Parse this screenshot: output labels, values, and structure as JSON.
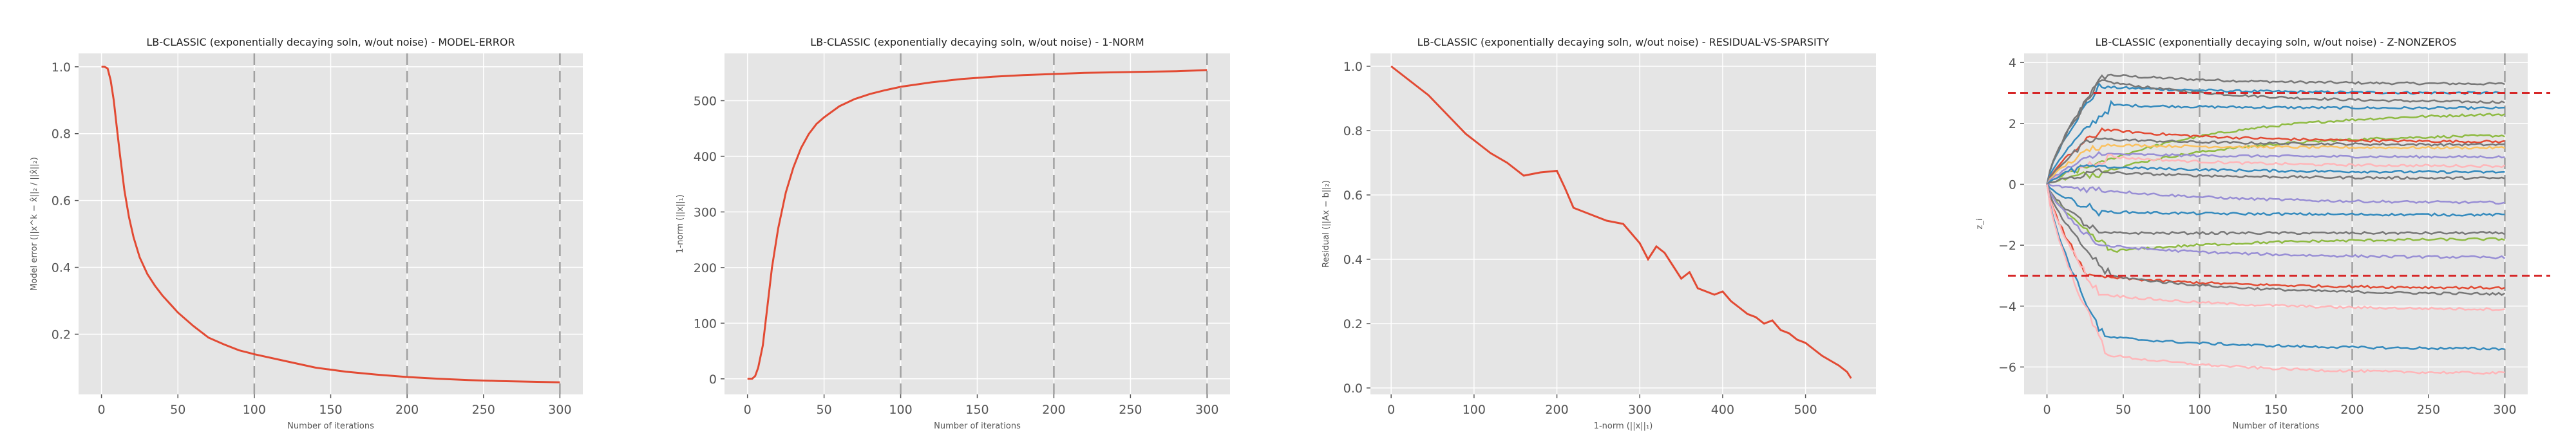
{
  "chart_data": [
    {
      "type": "line",
      "title": "LB-CLASSIC (exponentially decaying soln, w/out noise) - MODEL-ERROR",
      "xlabel": "Number of iterations",
      "ylabel": "Model error (||x^k − x̂||₂ / ||x̂||₂)",
      "xlim": [
        -15,
        315
      ],
      "ylim": [
        0.02,
        1.04
      ],
      "xticks": [
        0,
        50,
        100,
        150,
        200,
        250,
        300
      ],
      "yticks": [
        0.2,
        0.4,
        0.6,
        0.8,
        1.0
      ],
      "ytick_labels": [
        "0.2",
        "0.4",
        "0.6",
        "0.8",
        "1.0"
      ],
      "vlines": [
        100,
        200,
        300
      ],
      "grid": true,
      "series": [
        {
          "color": "#e24a33",
          "x": [
            0,
            2,
            4,
            6,
            8,
            10,
            12,
            15,
            18,
            21,
            25,
            30,
            35,
            40,
            45,
            50,
            60,
            70,
            80,
            90,
            100,
            120,
            140,
            160,
            180,
            200,
            220,
            240,
            260,
            280,
            300
          ],
          "y": [
            1.0,
            1.0,
            0.995,
            0.96,
            0.9,
            0.82,
            0.74,
            0.63,
            0.55,
            0.49,
            0.43,
            0.38,
            0.345,
            0.315,
            0.29,
            0.265,
            0.225,
            0.19,
            0.17,
            0.152,
            0.14,
            0.12,
            0.1,
            0.088,
            0.079,
            0.072,
            0.067,
            0.063,
            0.06,
            0.058,
            0.056
          ]
        }
      ]
    },
    {
      "type": "line",
      "title": "LB-CLASSIC (exponentially decaying soln, w/out noise) - 1-NORM",
      "xlabel": "Number of iterations",
      "ylabel": "1-norm (||x||₁)",
      "xlim": [
        -15,
        315
      ],
      "ylim": [
        -28,
        585
      ],
      "xticks": [
        0,
        50,
        100,
        150,
        200,
        250,
        300
      ],
      "yticks": [
        0,
        100,
        200,
        300,
        400,
        500
      ],
      "ytick_labels": [
        "0",
        "100",
        "200",
        "300",
        "400",
        "500"
      ],
      "vlines": [
        100,
        200,
        300
      ],
      "grid": true,
      "series": [
        {
          "color": "#e24a33",
          "x": [
            0,
            3,
            5,
            7,
            10,
            13,
            16,
            20,
            25,
            30,
            35,
            40,
            45,
            50,
            60,
            70,
            80,
            90,
            100,
            120,
            140,
            160,
            180,
            200,
            220,
            240,
            260,
            280,
            300
          ],
          "y": [
            0,
            0,
            5,
            20,
            60,
            130,
            200,
            270,
            335,
            380,
            415,
            440,
            458,
            470,
            490,
            503,
            512,
            519,
            525,
            533,
            539,
            543,
            546,
            548,
            550,
            551,
            552,
            553,
            555
          ]
        }
      ]
    },
    {
      "type": "line",
      "title": "LB-CLASSIC (exponentially decaying soln, w/out noise) - RESIDUAL-VS-SPARSITY",
      "xlabel": "1-norm (||x||₁)",
      "ylabel": "Residual (||Ax − b||₂)",
      "xlim": [
        -25,
        585
      ],
      "ylim": [
        -0.02,
        1.04
      ],
      "xticks": [
        0,
        100,
        200,
        300,
        400,
        500
      ],
      "yticks": [
        0.0,
        0.2,
        0.4,
        0.6,
        0.8,
        1.0
      ],
      "ytick_labels": [
        "0.0",
        "0.2",
        "0.4",
        "0.6",
        "0.8",
        "1.0"
      ],
      "vlines": [],
      "grid": true,
      "series": [
        {
          "color": "#e24a33",
          "x": [
            0,
            15,
            30,
            45,
            60,
            75,
            90,
            105,
            120,
            140,
            160,
            180,
            200,
            210,
            220,
            230,
            240,
            260,
            280,
            290,
            300,
            310,
            320,
            330,
            340,
            350,
            360,
            370,
            380,
            390,
            400,
            410,
            420,
            430,
            440,
            450,
            460,
            470,
            480,
            490,
            500,
            510,
            520,
            530,
            540,
            550,
            555
          ],
          "y": [
            1.0,
            0.97,
            0.94,
            0.91,
            0.87,
            0.83,
            0.79,
            0.76,
            0.73,
            0.7,
            0.66,
            0.67,
            0.675,
            0.62,
            0.56,
            0.55,
            0.54,
            0.52,
            0.51,
            0.48,
            0.45,
            0.4,
            0.44,
            0.42,
            0.38,
            0.34,
            0.36,
            0.31,
            0.3,
            0.29,
            0.3,
            0.27,
            0.25,
            0.23,
            0.22,
            0.2,
            0.21,
            0.18,
            0.17,
            0.15,
            0.14,
            0.12,
            0.1,
            0.085,
            0.07,
            0.05,
            0.03
          ]
        }
      ]
    },
    {
      "type": "line",
      "title": "LB-CLASSIC (exponentially decaying soln, w/out noise) - Z-NONZEROS",
      "xlabel": "Number of iterations",
      "ylabel": "z_i",
      "xlim": [
        -15,
        315
      ],
      "ylim": [
        -6.9,
        4.3
      ],
      "xticks": [
        0,
        50,
        100,
        150,
        200,
        250,
        300
      ],
      "yticks": [
        -6,
        -4,
        -2,
        0,
        2,
        4
      ],
      "ytick_labels": [
        "−6",
        "−4",
        "−2",
        "0",
        "2",
        "4"
      ],
      "vlines": [
        100,
        200,
        300
      ],
      "hlines": [
        3,
        -3
      ],
      "grid": true,
      "series": [
        {
          "color": "#777777",
          "peak": 3.6,
          "final": 3.3
        },
        {
          "color": "#348abd",
          "peak": 3.2,
          "final": 3.0
        },
        {
          "color": "#777777",
          "peak": 3.4,
          "final": 2.7
        },
        {
          "color": "#348abd",
          "peak": 2.6,
          "final": 2.5
        },
        {
          "color": "#8eba42",
          "peak": 0.6,
          "final": 2.3
        },
        {
          "color": "#8eba42",
          "peak": 0.4,
          "final": 1.6
        },
        {
          "color": "#e24a33",
          "peak": 1.8,
          "final": 1.4
        },
        {
          "color": "#777777",
          "peak": 1.5,
          "final": 1.3
        },
        {
          "color": "#fbc15e",
          "peak": 1.3,
          "final": 1.2
        },
        {
          "color": "#988ed5",
          "peak": 1.0,
          "final": 0.9
        },
        {
          "color": "#ffb5b8",
          "peak": 0.9,
          "final": 0.6
        },
        {
          "color": "#348abd",
          "peak": 0.6,
          "final": 0.4
        },
        {
          "color": "#777777",
          "peak": 0.4,
          "final": 0.2
        },
        {
          "color": "#988ed5",
          "peak": -0.2,
          "final": -0.6
        },
        {
          "color": "#348abd",
          "peak": -0.9,
          "final": -1.0
        },
        {
          "color": "#777777",
          "peak": -1.6,
          "final": -1.6
        },
        {
          "color": "#8eba42",
          "peak": -2.2,
          "final": -1.8
        },
        {
          "color": "#988ed5",
          "peak": -2.0,
          "final": -2.4
        },
        {
          "color": "#e24a33",
          "peak": -3.0,
          "final": -3.4
        },
        {
          "color": "#777777",
          "peak": -3.0,
          "final": -3.6
        },
        {
          "color": "#ffb5b8",
          "peak": -3.6,
          "final": -4.1
        },
        {
          "color": "#348abd",
          "peak": -5.0,
          "final": -5.4
        },
        {
          "color": "#ffb5b8",
          "peak": -5.6,
          "final": -6.2
        }
      ]
    }
  ]
}
